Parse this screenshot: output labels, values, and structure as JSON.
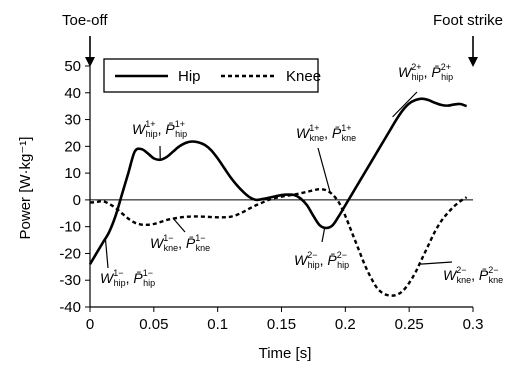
{
  "chart_data": {
    "type": "line",
    "xlabel": "Time [s]",
    "ylabel": "Power [W·kg⁻¹]",
    "xlim": [
      0,
      0.3
    ],
    "ylim": [
      -40,
      50
    ],
    "xticks": [
      "0",
      "0.05",
      "0.1",
      "0.15",
      "0.2",
      "0.25",
      "0.3"
    ],
    "yticks": [
      "-40",
      "-30",
      "-20",
      "-10",
      "0",
      "10",
      "20",
      "30",
      "40",
      "50"
    ],
    "zero_line": true,
    "grid": false,
    "legend_position": "top-left",
    "series": [
      {
        "name": "Hip",
        "style": "solid",
        "color": "#000000",
        "points": [
          [
            0.0,
            -24
          ],
          [
            0.005,
            -20
          ],
          [
            0.01,
            -16
          ],
          [
            0.015,
            -12
          ],
          [
            0.02,
            -6
          ],
          [
            0.025,
            2
          ],
          [
            0.03,
            10
          ],
          [
            0.035,
            18
          ],
          [
            0.04,
            19
          ],
          [
            0.045,
            17.5
          ],
          [
            0.05,
            15.5
          ],
          [
            0.055,
            15
          ],
          [
            0.06,
            16
          ],
          [
            0.065,
            18
          ],
          [
            0.07,
            20
          ],
          [
            0.075,
            21.3
          ],
          [
            0.08,
            21.8
          ],
          [
            0.085,
            21.5
          ],
          [
            0.09,
            20.5
          ],
          [
            0.095,
            18.5
          ],
          [
            0.1,
            15.5
          ],
          [
            0.105,
            12
          ],
          [
            0.11,
            8.5
          ],
          [
            0.115,
            5.5
          ],
          [
            0.12,
            3
          ],
          [
            0.125,
            1
          ],
          [
            0.13,
            0
          ],
          [
            0.135,
            0.3
          ],
          [
            0.14,
            0.8
          ],
          [
            0.145,
            1.3
          ],
          [
            0.15,
            1.8
          ],
          [
            0.155,
            2
          ],
          [
            0.16,
            1.8
          ],
          [
            0.165,
            0.5
          ],
          [
            0.17,
            -2
          ],
          [
            0.175,
            -6
          ],
          [
            0.18,
            -9.5
          ],
          [
            0.185,
            -10.5
          ],
          [
            0.19,
            -9.5
          ],
          [
            0.195,
            -6
          ],
          [
            0.2,
            -2
          ],
          [
            0.205,
            2
          ],
          [
            0.21,
            6
          ],
          [
            0.215,
            10
          ],
          [
            0.22,
            14
          ],
          [
            0.225,
            18
          ],
          [
            0.23,
            22
          ],
          [
            0.235,
            26
          ],
          [
            0.24,
            30
          ],
          [
            0.245,
            33.5
          ],
          [
            0.25,
            36
          ],
          [
            0.255,
            37.3
          ],
          [
            0.26,
            37.8
          ],
          [
            0.265,
            37.3
          ],
          [
            0.27,
            36.3
          ],
          [
            0.275,
            35.5
          ],
          [
            0.28,
            35.2
          ],
          [
            0.285,
            35.6
          ],
          [
            0.29,
            35.8
          ],
          [
            0.295,
            35
          ]
        ]
      },
      {
        "name": "Knee",
        "style": "dashed",
        "color": "#000000",
        "points": [
          [
            0.0,
            -1
          ],
          [
            0.005,
            -0.8
          ],
          [
            0.01,
            -0.5
          ],
          [
            0.015,
            -1.5
          ],
          [
            0.02,
            -3
          ],
          [
            0.025,
            -5
          ],
          [
            0.03,
            -7
          ],
          [
            0.035,
            -8.5
          ],
          [
            0.04,
            -9.2
          ],
          [
            0.045,
            -9.3
          ],
          [
            0.05,
            -9
          ],
          [
            0.055,
            -8.3
          ],
          [
            0.06,
            -7.5
          ],
          [
            0.065,
            -7
          ],
          [
            0.07,
            -6.6
          ],
          [
            0.075,
            -6.3
          ],
          [
            0.08,
            -6.2
          ],
          [
            0.085,
            -6.2
          ],
          [
            0.09,
            -6.3
          ],
          [
            0.095,
            -6.4
          ],
          [
            0.1,
            -6.5
          ],
          [
            0.105,
            -6.5
          ],
          [
            0.11,
            -6.3
          ],
          [
            0.115,
            -5.6
          ],
          [
            0.12,
            -4.5
          ],
          [
            0.125,
            -3.2
          ],
          [
            0.13,
            -2
          ],
          [
            0.135,
            -1
          ],
          [
            0.14,
            0
          ],
          [
            0.145,
            0.7
          ],
          [
            0.15,
            1.2
          ],
          [
            0.155,
            1.6
          ],
          [
            0.16,
            2
          ],
          [
            0.165,
            2.5
          ],
          [
            0.17,
            3
          ],
          [
            0.175,
            3.6
          ],
          [
            0.18,
            4
          ],
          [
            0.185,
            3.6
          ],
          [
            0.19,
            2
          ],
          [
            0.195,
            -1
          ],
          [
            0.2,
            -6
          ],
          [
            0.205,
            -12
          ],
          [
            0.21,
            -18
          ],
          [
            0.215,
            -24
          ],
          [
            0.22,
            -29
          ],
          [
            0.225,
            -33
          ],
          [
            0.23,
            -35
          ],
          [
            0.235,
            -35.7
          ],
          [
            0.24,
            -35.5
          ],
          [
            0.245,
            -34
          ],
          [
            0.25,
            -31
          ],
          [
            0.255,
            -27
          ],
          [
            0.26,
            -22
          ],
          [
            0.265,
            -17
          ],
          [
            0.27,
            -12
          ],
          [
            0.275,
            -8
          ],
          [
            0.28,
            -5
          ],
          [
            0.285,
            -2.5
          ],
          [
            0.29,
            -0.5
          ],
          [
            0.295,
            1
          ]
        ]
      }
    ],
    "markers": [
      {
        "label": "Toe-off",
        "x": 0.0
      },
      {
        "label": "Foot strike",
        "x": 0.3
      }
    ],
    "annotations": [
      {
        "id": "w-hip-1-plus",
        "sup": "1+",
        "sub": "hip",
        "anchor": [
          0.055,
          15.5
        ]
      },
      {
        "id": "w-hip-1-minus",
        "sup": "1−",
        "sub": "hip",
        "anchor": [
          0.012,
          -14
        ]
      },
      {
        "id": "w-kne-1-minus",
        "sup": "1−",
        "sub": "kne",
        "anchor": [
          0.065,
          -6.8
        ]
      },
      {
        "id": "w-kne-1-plus",
        "sup": "1+",
        "sub": "kne",
        "anchor": [
          0.188,
          3.0
        ]
      },
      {
        "id": "w-hip-2-minus",
        "sup": "2−",
        "sub": "hip",
        "anchor": [
          0.184,
          -10.0
        ]
      },
      {
        "id": "w-hip-2-plus",
        "sup": "2+",
        "sub": "hip",
        "anchor": [
          0.237,
          31.0
        ]
      },
      {
        "id": "w-kne-2-minus",
        "sup": "2−",
        "sub": "kne",
        "anchor": [
          0.259,
          -24.0
        ]
      }
    ]
  }
}
